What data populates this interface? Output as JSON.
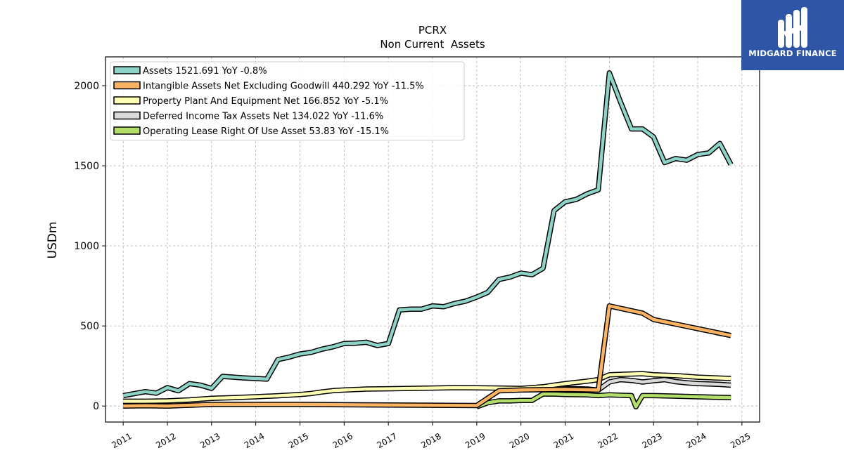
{
  "chart_data": {
    "type": "line",
    "title": "PCRX",
    "subtitle": "Non Current  Assets",
    "ylabel": "USDm",
    "xlabel": "",
    "xlim": [
      2010.6,
      2025.4
    ],
    "ylim": [
      -100,
      2180
    ],
    "x_ticks": [
      "2011",
      "2012",
      "2013",
      "2014",
      "2015",
      "2016",
      "2017",
      "2018",
      "2019",
      "2020",
      "2021",
      "2022",
      "2023",
      "2024",
      "2025"
    ],
    "y_ticks": [
      0,
      500,
      1000,
      1500,
      2000
    ],
    "grid": true,
    "legend_position": "top-left",
    "series": [
      {
        "name": "Assets",
        "legend": "Assets  1521.691 YoY -0.8%",
        "color": "#8dd3c7",
        "points": [
          [
            2011.0,
            65
          ],
          [
            2011.5,
            90
          ],
          [
            2011.75,
            80
          ],
          [
            2012.0,
            115
          ],
          [
            2012.25,
            95
          ],
          [
            2012.5,
            140
          ],
          [
            2012.75,
            130
          ],
          [
            2013.0,
            110
          ],
          [
            2013.25,
            185
          ],
          [
            2013.5,
            180
          ],
          [
            2013.75,
            175
          ],
          [
            2014.0,
            172
          ],
          [
            2014.25,
            168
          ],
          [
            2014.5,
            290
          ],
          [
            2014.75,
            305
          ],
          [
            2015.0,
            325
          ],
          [
            2015.25,
            335
          ],
          [
            2015.5,
            355
          ],
          [
            2015.75,
            370
          ],
          [
            2016.0,
            390
          ],
          [
            2016.25,
            392
          ],
          [
            2016.5,
            398
          ],
          [
            2016.75,
            378
          ],
          [
            2017.0,
            390
          ],
          [
            2017.25,
            600
          ],
          [
            2017.5,
            605
          ],
          [
            2017.75,
            605
          ],
          [
            2018.0,
            625
          ],
          [
            2018.25,
            620
          ],
          [
            2018.5,
            640
          ],
          [
            2018.75,
            655
          ],
          [
            2019.0,
            680
          ],
          [
            2019.25,
            710
          ],
          [
            2019.5,
            790
          ],
          [
            2019.75,
            805
          ],
          [
            2020.0,
            830
          ],
          [
            2020.25,
            820
          ],
          [
            2020.5,
            860
          ],
          [
            2020.75,
            1220
          ],
          [
            2021.0,
            1275
          ],
          [
            2021.25,
            1290
          ],
          [
            2021.5,
            1325
          ],
          [
            2021.75,
            1350
          ],
          [
            2022.0,
            2080
          ],
          [
            2022.25,
            1900
          ],
          [
            2022.5,
            1730
          ],
          [
            2022.75,
            1730
          ],
          [
            2023.0,
            1680
          ],
          [
            2023.25,
            1520
          ],
          [
            2023.5,
            1545
          ],
          [
            2023.75,
            1535
          ],
          [
            2024.0,
            1570
          ],
          [
            2024.25,
            1580
          ],
          [
            2024.5,
            1640
          ],
          [
            2024.75,
            1508
          ]
        ]
      },
      {
        "name": "Intangible Assets Net Excluding Goodwill",
        "legend": "Intangible Assets Net Excluding Goodwill  440.292 YoY -11.5%",
        "color": "#fdb462",
        "points": [
          [
            2011.0,
            0
          ],
          [
            2011.5,
            2
          ],
          [
            2012.0,
            0
          ],
          [
            2012.5,
            5
          ],
          [
            2013.0,
            10
          ],
          [
            2014.0,
            10
          ],
          [
            2015.0,
            10
          ],
          [
            2016.0,
            8
          ],
          [
            2017.0,
            6
          ],
          [
            2018.0,
            5
          ],
          [
            2019.0,
            3
          ],
          [
            2019.5,
            95
          ],
          [
            2020.0,
            100
          ],
          [
            2020.5,
            102
          ],
          [
            2021.0,
            104
          ],
          [
            2021.75,
            100
          ],
          [
            2022.0,
            625
          ],
          [
            2022.25,
            610
          ],
          [
            2022.75,
            580
          ],
          [
            2023.0,
            540
          ],
          [
            2024.75,
            440
          ]
        ]
      },
      {
        "name": "Property Plant And Equipment Net",
        "legend": "Property Plant And Equipment Net  166.852 YoY -5.1%",
        "color": "#ffffb3",
        "points": [
          [
            2011.0,
            30
          ],
          [
            2011.5,
            30
          ],
          [
            2012.0,
            32
          ],
          [
            2012.5,
            38
          ],
          [
            2013.0,
            48
          ],
          [
            2013.5,
            52
          ],
          [
            2014.0,
            58
          ],
          [
            2014.5,
            64
          ],
          [
            2015.0,
            72
          ],
          [
            2015.25,
            78
          ],
          [
            2015.5,
            88
          ],
          [
            2015.75,
            96
          ],
          [
            2016.0,
            100
          ],
          [
            2016.5,
            106
          ],
          [
            2017.0,
            108
          ],
          [
            2017.5,
            110
          ],
          [
            2018.0,
            112
          ],
          [
            2018.5,
            115
          ],
          [
            2019.0,
            114
          ],
          [
            2019.5,
            112
          ],
          [
            2020.0,
            110
          ],
          [
            2020.5,
            120
          ],
          [
            2020.75,
            130
          ],
          [
            2021.0,
            140
          ],
          [
            2021.5,
            155
          ],
          [
            2021.75,
            165
          ],
          [
            2022.0,
            195
          ],
          [
            2022.5,
            200
          ],
          [
            2022.75,
            202
          ],
          [
            2023.0,
            195
          ],
          [
            2023.5,
            190
          ],
          [
            2024.0,
            180
          ],
          [
            2024.75,
            172
          ]
        ]
      },
      {
        "name": "Deferred Income Tax Assets Net",
        "legend": "Deferred Income Tax Assets Net  134.022 YoY -11.6%",
        "color": "#d9d9d9",
        "points": [
          [
            2020.75,
            110
          ],
          [
            2021.0,
            110
          ],
          [
            2021.5,
            106
          ],
          [
            2021.75,
            100
          ],
          [
            2022.0,
            150
          ],
          [
            2022.25,
            165
          ],
          [
            2022.5,
            160
          ],
          [
            2022.75,
            150
          ],
          [
            2023.0,
            158
          ],
          [
            2023.25,
            165
          ],
          [
            2023.5,
            152
          ],
          [
            2023.75,
            145
          ],
          [
            2024.0,
            140
          ],
          [
            2024.5,
            135
          ],
          [
            2024.75,
            130
          ]
        ]
      },
      {
        "name": "Operating Lease Right Of Use Asset",
        "legend": "Operating Lease Right Of Use Asset  53.83 YoY -15.1%",
        "color": "#b3de69",
        "points": [
          [
            2019.0,
            -5
          ],
          [
            2019.25,
            20
          ],
          [
            2019.5,
            32
          ],
          [
            2019.75,
            32
          ],
          [
            2020.0,
            35
          ],
          [
            2020.25,
            35
          ],
          [
            2020.5,
            75
          ],
          [
            2020.75,
            75
          ],
          [
            2021.0,
            72
          ],
          [
            2021.5,
            70
          ],
          [
            2021.75,
            65
          ],
          [
            2022.0,
            70
          ],
          [
            2022.5,
            65
          ],
          [
            2022.6,
            -5
          ],
          [
            2022.75,
            65
          ],
          [
            2023.0,
            65
          ],
          [
            2023.5,
            62
          ],
          [
            2024.0,
            58
          ],
          [
            2024.75,
            52
          ]
        ]
      }
    ]
  },
  "logo": {
    "text": "MIDGARD FINANCE"
  }
}
